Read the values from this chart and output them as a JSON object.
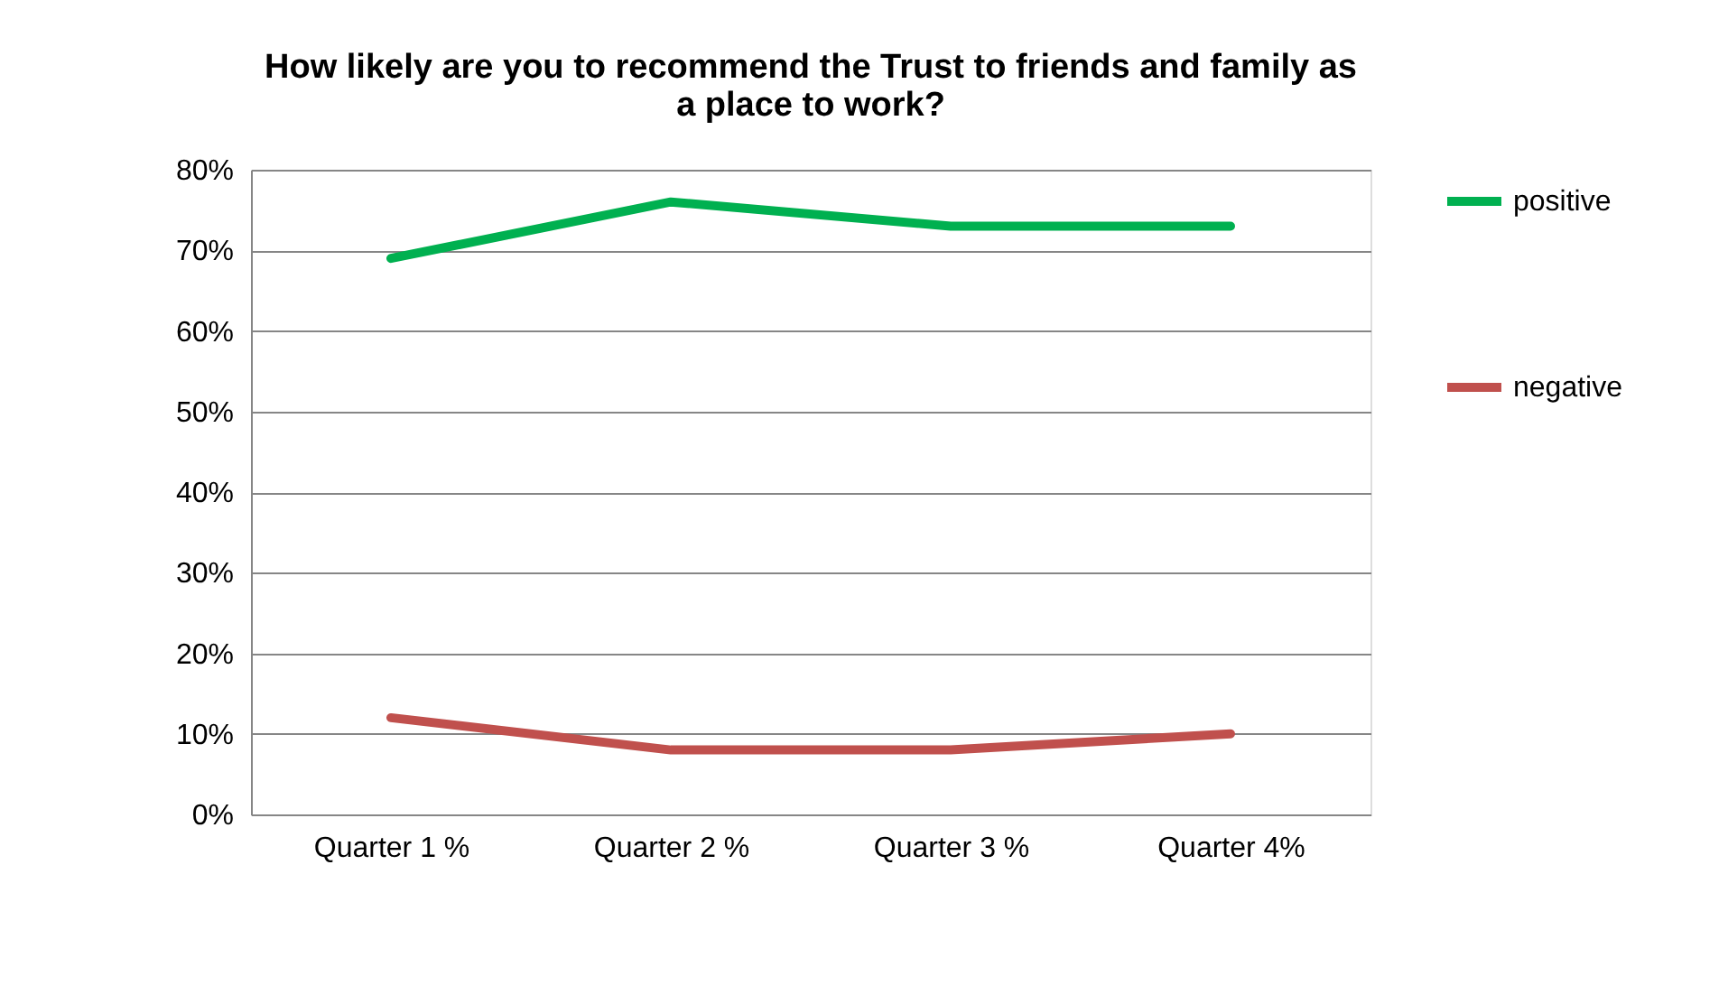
{
  "chart_data": {
    "type": "line",
    "title": "How likely are you to recommend the Trust to friends and family as a place to work?",
    "categories": [
      "Quarter 1 %",
      "Quarter 2 %",
      "Quarter 3 %",
      "Quarter 4%"
    ],
    "series": [
      {
        "name": "positive",
        "color": "#00b050",
        "values": [
          69,
          76,
          73,
          73
        ]
      },
      {
        "name": "negative",
        "color": "#c0504d",
        "values": [
          12,
          8,
          8,
          10
        ]
      }
    ],
    "ylim": [
      0,
      80
    ],
    "yticks": [
      {
        "value": 0,
        "label": "0%"
      },
      {
        "value": 10,
        "label": "10%"
      },
      {
        "value": 20,
        "label": "20%"
      },
      {
        "value": 30,
        "label": "30%"
      },
      {
        "value": 40,
        "label": "40%"
      },
      {
        "value": 50,
        "label": "50%"
      },
      {
        "value": 60,
        "label": "60%"
      },
      {
        "value": 70,
        "label": "70%"
      },
      {
        "value": 80,
        "label": "80%"
      }
    ],
    "grid": "y",
    "legend": "right",
    "marker": "none",
    "line_style": "solid"
  }
}
